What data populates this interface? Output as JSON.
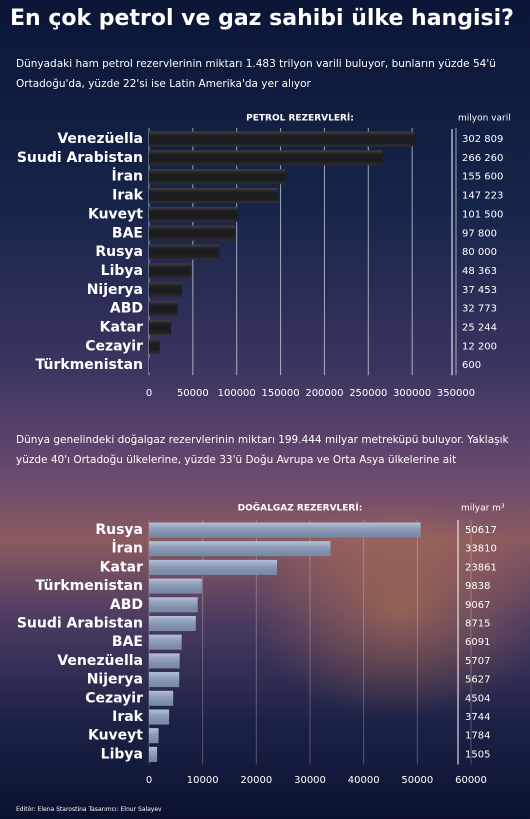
{
  "title": "En çok petrol ve gaz sahibi ülke hangisi?",
  "credit": "Editör: Elena Starostina  Tasarımcı: Elnur Salayev",
  "chart_data": [
    {
      "type": "bar",
      "orientation": "horizontal",
      "subtitle": "Dünyadaki ham petrol rezervlerinin miktarı 1.483 trilyon varili buluyor, bunların yüzde 54'ü Ortadoğu'da, yüzde 22'si ise Latin Amerika'da yer alıyor",
      "title": "PETROL REZERVLERİ:",
      "unit": "milyon varil",
      "categories": [
        "Venezüella",
        "Suudi Arabistan",
        "İran",
        "Irak",
        "Kuveyt",
        "BAE",
        "Rusya",
        "Libya",
        "Nijerya",
        "ABD",
        "Katar",
        "Cezayir",
        "Türkmenistan"
      ],
      "values": [
        302809,
        266260,
        155600,
        147223,
        101500,
        97800,
        80000,
        48363,
        37453,
        32773,
        25244,
        12200,
        600
      ],
      "value_labels": [
        "302 809",
        "266 260",
        "155 600",
        "147 223",
        "101 500",
        "97 800",
        "80 000",
        "48 363",
        "37 453",
        "32 773",
        "25 244",
        "12 200",
        "600"
      ],
      "color": "#1e1e22",
      "xlim": [
        0,
        350000
      ],
      "xticks": [
        0,
        50000,
        100000,
        150000,
        200000,
        250000,
        300000,
        350000
      ],
      "grid": true
    },
    {
      "type": "bar",
      "orientation": "horizontal",
      "subtitle": "Dünya genelindeki doğalgaz rezervlerinin miktarı 199.444 milyar metreküpü buluyor. Yaklaşık yüzde 40'ı Ortadoğu ülkelerine, yüzde 33'ü Doğu Avrupa ve Orta Asya ülkelerine ait",
      "title": "DOĞALGAZ REZERVLERİ:",
      "unit": "milyar m³",
      "categories": [
        "Rusya",
        "İran",
        "Katar",
        "Türkmenistan",
        "ABD",
        "Suudi Arabistan",
        "BAE",
        "Venezüella",
        "Nijerya",
        "Cezayir",
        "Irak",
        "Kuveyt",
        "Libya"
      ],
      "values": [
        50617,
        33810,
        23861,
        9838,
        9067,
        8715,
        6091,
        5707,
        5627,
        4504,
        3744,
        1784,
        1505
      ],
      "color": "#8ea2c6",
      "xlim": [
        0,
        60000
      ],
      "xticks": [
        0,
        10000,
        20000,
        30000,
        40000,
        50000,
        60000
      ],
      "grid": true
    }
  ]
}
